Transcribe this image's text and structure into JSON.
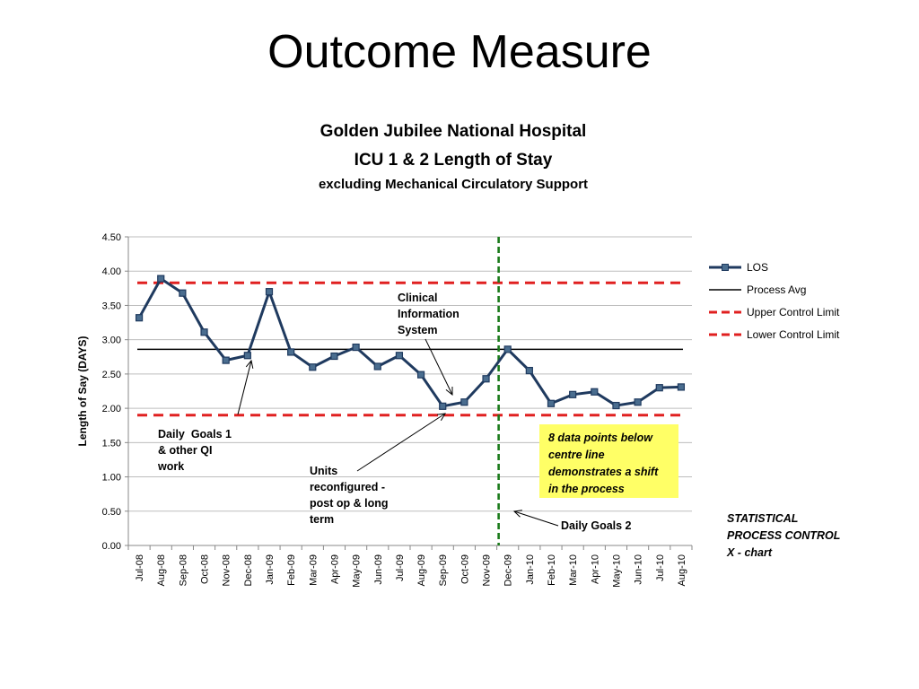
{
  "slide": {
    "title": "Outcome Measure"
  },
  "chart_data": {
    "type": "line",
    "title": "Golden Jubilee National Hospital",
    "subtitle": "ICU 1 & 2 Length of Stay",
    "subtitle2": "excluding Mechanical Circulatory Support",
    "xlabel": "",
    "ylabel": "Length of Say (DAYS)",
    "ylim": [
      0,
      4.5
    ],
    "yticks": [
      "0.00",
      "0.50",
      "1.00",
      "1.50",
      "2.00",
      "2.50",
      "3.00",
      "3.50",
      "4.00",
      "4.50"
    ],
    "grid": true,
    "legend_position": "right",
    "categories": [
      "Jul-08",
      "Aug-08",
      "Sep-08",
      "Oct-08",
      "Nov-08",
      "Dec-08",
      "Jan-09",
      "Feb-09",
      "Mar-09",
      "Apr-09",
      "May-09",
      "Jun-09",
      "Jul-09",
      "Aug-09",
      "Sep-09",
      "Oct-09",
      "Nov-09",
      "Dec-09",
      "Jan-10",
      "Feb-10",
      "Mar-10",
      "Apr-10",
      "May-10",
      "Jun-10",
      "Jul-10",
      "Aug-10"
    ],
    "series": [
      {
        "name": "LOS",
        "color": "#1f3a5f",
        "values": [
          3.32,
          3.89,
          3.68,
          3.11,
          2.7,
          2.77,
          3.7,
          2.82,
          2.6,
          2.76,
          2.89,
          2.61,
          2.77,
          2.49,
          2.03,
          2.09,
          2.43,
          2.86,
          2.55,
          2.07,
          2.2,
          2.24,
          2.04,
          2.09,
          2.3,
          2.31
        ]
      },
      {
        "name": "Process Avg",
        "color": "#000000",
        "value": 2.86
      },
      {
        "name": "Upper Control Limit",
        "color": "#e02020",
        "value": 3.83
      },
      {
        "name": "Lower Control Limit",
        "color": "#e02020",
        "value": 1.9
      }
    ],
    "marker_line": {
      "category": "Dec-09",
      "color": "#1a7a1a"
    },
    "annotations": {
      "clinical": [
        "Clinical",
        "Information",
        "System"
      ],
      "daily_goals_1": [
        "Daily  Goals 1",
        "& other QI",
        "work"
      ],
      "units": [
        "Units",
        "reconfigured -",
        "post op & long",
        "term"
      ],
      "daily_goals_2": "Daily Goals 2",
      "shift_note": [
        "8 data points below",
        "centre line",
        "demonstrates a shift",
        "in the process"
      ],
      "spc_label": [
        "STATISTICAL",
        "PROCESS CONTROL",
        "X - chart"
      ]
    }
  }
}
